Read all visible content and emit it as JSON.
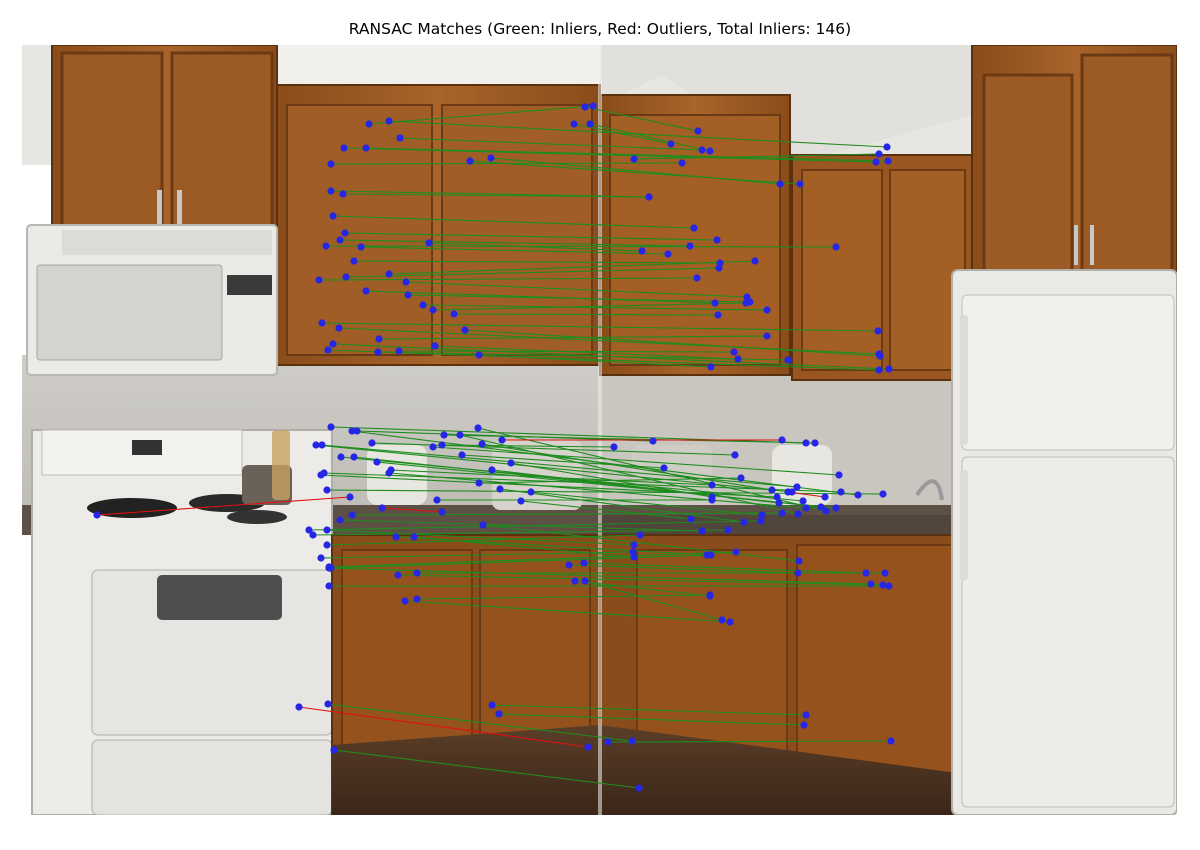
{
  "figure": {
    "title": "RANSAC Matches (Green: Inliers, Red: Outliers, Total Inliers: 146)"
  },
  "colors": {
    "inlier_line": "#1e8c1e",
    "outlier_line": "#e01010",
    "keypoint": "#2626e6",
    "wall": "#d9d8d4",
    "ceiling": "#eceae6",
    "cabinet_wood": "#9a5a22",
    "cabinet_dark": "#6b3a14",
    "countertop": "#5a4a3e",
    "appliance_white": "#ededeb",
    "floor": "#4a3222"
  },
  "matches": {
    "inlier_count": 146,
    "legend": {
      "inliers": "Green",
      "outliers": "Red"
    }
  }
}
